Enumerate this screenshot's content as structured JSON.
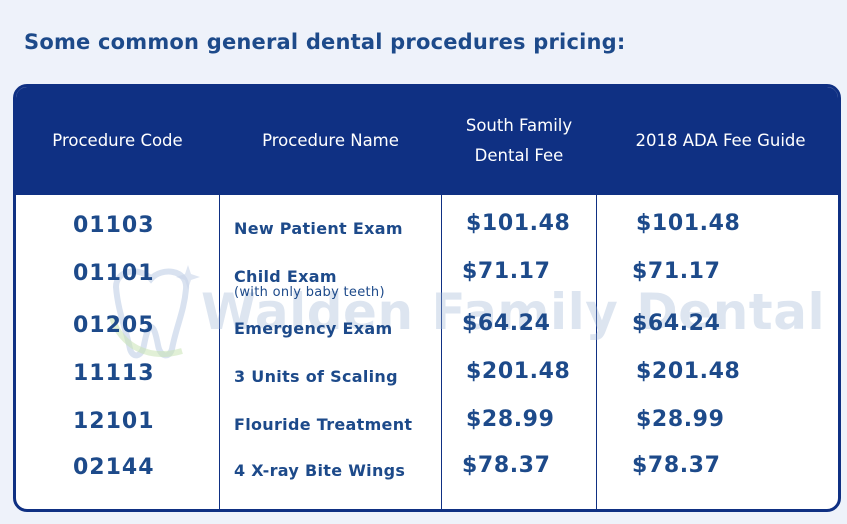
{
  "heading": "Some common general dental procedures pricing:",
  "table": {
    "headers": [
      "Procedure Code",
      "Procedure Name",
      "South Family Dental Fee",
      "2018 ADA Fee Guide"
    ],
    "header_south_line1": "South Family",
    "header_south_line2": "Dental Fee",
    "rows": [
      {
        "code": "01103",
        "name": "New Patient Exam",
        "sub": "",
        "south_fee": "$101.48",
        "ada_fee": "$101.48"
      },
      {
        "code": "01101",
        "name": "Child Exam",
        "sub": "(with only baby teeth)",
        "south_fee": "$71.17",
        "ada_fee": "$71.17"
      },
      {
        "code": "01205",
        "name": "Emergency Exam",
        "sub": "",
        "south_fee": "$64.24",
        "ada_fee": "$64.24"
      },
      {
        "code": "11113",
        "name": "3 Units of Scaling",
        "sub": "",
        "south_fee": "$201.48",
        "ada_fee": "$201.48"
      },
      {
        "code": "12101",
        "name": "Flouride Treatment",
        "sub": "",
        "south_fee": "$28.99",
        "ada_fee": "$28.99"
      },
      {
        "code": "02144",
        "name": "4 X-ray Bite Wings",
        "sub": "",
        "south_fee": "$78.37",
        "ada_fee": "$78.37"
      }
    ]
  },
  "watermark": {
    "text": "Walden Family Dental",
    "logo_icon": "tooth-logo-icon"
  },
  "colors": {
    "header_bg": "#0f3083",
    "text": "#1d4a8a",
    "page_bg": "#eef2fa"
  }
}
